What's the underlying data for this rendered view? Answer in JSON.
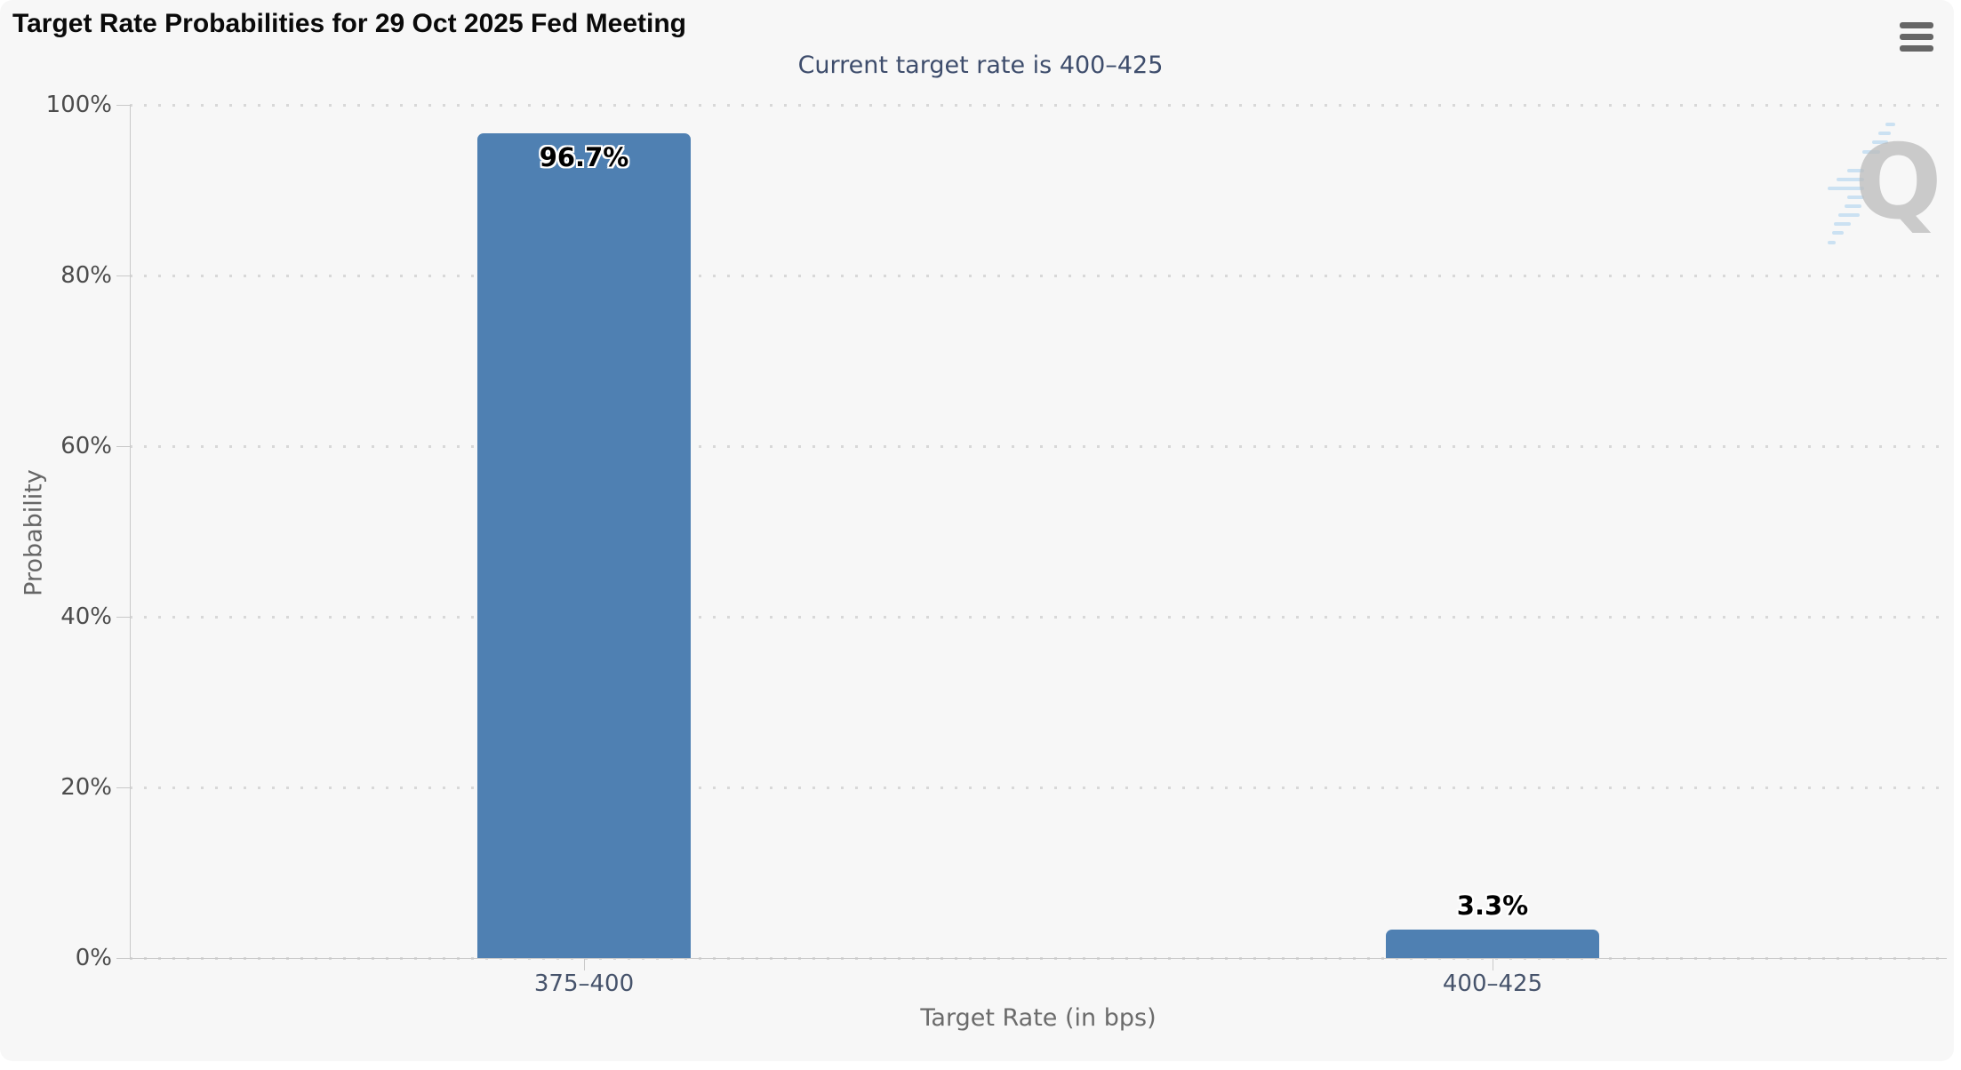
{
  "chart": {
    "title": "Target Rate Probabilities for 29 Oct 2025 Fed Meeting",
    "subtitle": "Current target rate is 400–425",
    "menu_icon": "hamburger-icon",
    "watermark_letter": "Q"
  },
  "chart_data": {
    "type": "bar",
    "title": "Target Rate Probabilities for 29 Oct 2025 Fed Meeting",
    "subtitle": "Current target rate is 400–425",
    "categories": [
      "375–400",
      "400–425"
    ],
    "values": [
      96.7,
      3.3
    ],
    "value_labels": [
      "96.7%",
      "3.3%"
    ],
    "xlabel": "Target Rate (in bps)",
    "ylabel": "Probability",
    "ylim": [
      0,
      100
    ],
    "ytick_values": [
      0,
      20,
      40,
      60,
      80,
      100
    ],
    "ytick_labels": [
      "0%",
      "20%",
      "40%",
      "60%",
      "80%",
      "100%"
    ],
    "grid": "dotted-horizontal",
    "legend": "none",
    "bar_color": "#4f80b2",
    "background_color": "#f7f7f7"
  }
}
